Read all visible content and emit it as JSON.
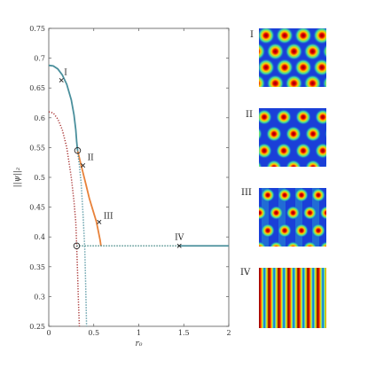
{
  "chart_data": {
    "type": "line",
    "title": "",
    "xlabel": "r₀",
    "ylabel": "||ψ||₂",
    "xlim": [
      0,
      2
    ],
    "ylim": [
      0.25,
      0.75
    ],
    "xticks": [
      "0",
      "0.5",
      "1",
      "1.5",
      "2"
    ],
    "yticks": [
      "0.25",
      "0.3",
      "0.35",
      "0.4",
      "0.45",
      "0.5",
      "0.55",
      "0.6",
      "0.65",
      "0.7",
      "0.75"
    ],
    "grid": false,
    "series": [
      {
        "style": "solid",
        "color": "#4a8f9c",
        "points": [
          [
            0,
            0.688
          ],
          [
            0.05,
            0.687
          ],
          [
            0.1,
            0.682
          ],
          [
            0.15,
            0.672
          ],
          [
            0.2,
            0.656
          ],
          [
            0.25,
            0.63
          ],
          [
            0.28,
            0.605
          ],
          [
            0.3,
            0.58
          ],
          [
            0.31,
            0.56
          ],
          [
            0.32,
            0.545
          ]
        ]
      },
      {
        "style": "solid",
        "color": "#e8823a",
        "points": [
          [
            0.32,
            0.545
          ],
          [
            0.36,
            0.52
          ],
          [
            0.41,
            0.49
          ],
          [
            0.45,
            0.465
          ],
          [
            0.5,
            0.44
          ],
          [
            0.53,
            0.425
          ],
          [
            0.55,
            0.41
          ],
          [
            0.57,
            0.395
          ],
          [
            0.58,
            0.385
          ]
        ]
      },
      {
        "style": "dotted",
        "color": "#4a8f9c",
        "points": [
          [
            0.32,
            0.545
          ],
          [
            0.34,
            0.52
          ],
          [
            0.36,
            0.49
          ],
          [
            0.38,
            0.44
          ],
          [
            0.4,
            0.38
          ],
          [
            0.41,
            0.32
          ],
          [
            0.42,
            0.25
          ]
        ]
      },
      {
        "style": "dotted",
        "color": "#a83232",
        "points": [
          [
            0,
            0.61
          ],
          [
            0.05,
            0.608
          ],
          [
            0.1,
            0.598
          ],
          [
            0.15,
            0.58
          ],
          [
            0.2,
            0.55
          ],
          [
            0.25,
            0.5
          ],
          [
            0.28,
            0.46
          ],
          [
            0.3,
            0.425
          ],
          [
            0.31,
            0.385
          ],
          [
            0.32,
            0.34
          ],
          [
            0.33,
            0.29
          ],
          [
            0.34,
            0.25
          ]
        ]
      },
      {
        "style": "dotted",
        "color": "#2e7a78",
        "points": [
          [
            0.31,
            0.385
          ],
          [
            1.45,
            0.385
          ]
        ]
      },
      {
        "style": "solid",
        "color": "#4a8f9c",
        "points": [
          [
            1.45,
            0.385
          ],
          [
            2.0,
            0.385
          ]
        ]
      }
    ],
    "circle_markers": [
      [
        0.32,
        0.545
      ],
      [
        0.31,
        0.385
      ]
    ],
    "x_markers": [
      {
        "label": "I",
        "x": 0.14,
        "y": 0.663
      },
      {
        "label": "II",
        "x": 0.38,
        "y": 0.52
      },
      {
        "label": "III",
        "x": 0.56,
        "y": 0.425
      },
      {
        "label": "IV",
        "x": 1.45,
        "y": 0.385
      }
    ]
  },
  "panels": [
    {
      "label": "I",
      "pattern": "hex"
    },
    {
      "label": "II",
      "pattern": "hex-sparse"
    },
    {
      "label": "III",
      "pattern": "stripe-spots"
    },
    {
      "label": "IV",
      "pattern": "stripes"
    }
  ]
}
